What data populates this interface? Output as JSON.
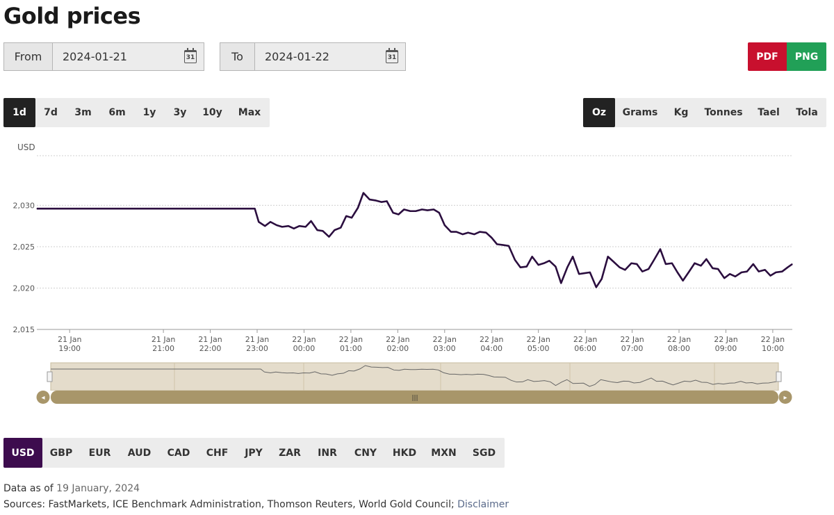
{
  "page": {
    "title": "Gold prices"
  },
  "date_range": {
    "from_label": "From",
    "from_value": "2024-01-21",
    "to_label": "To",
    "to_value": "2024-01-22",
    "calendar_day": "31"
  },
  "export": {
    "pdf": "PDF",
    "png": "PNG"
  },
  "periods": {
    "items": [
      "1d",
      "7d",
      "3m",
      "6m",
      "1y",
      "3y",
      "10y",
      "Max"
    ],
    "selected": "1d"
  },
  "units": {
    "items": [
      "Oz",
      "Grams",
      "Kg",
      "Tonnes",
      "Tael",
      "Tola"
    ],
    "selected": "Oz"
  },
  "currencies": {
    "items": [
      "USD",
      "GBP",
      "EUR",
      "AUD",
      "CAD",
      "CHF",
      "JPY",
      "ZAR",
      "INR",
      "CNY",
      "HKD",
      "MXN",
      "SGD"
    ],
    "selected": "USD"
  },
  "footer": {
    "asof_prefix": "Data as of",
    "asof_date": "19 January, 2024",
    "sources_text": "Sources: FastMarkets, ICE Benchmark Administration, Thomson Reuters, World Gold Council;",
    "disclaimer": "Disclaimer"
  },
  "navigator": {
    "handle_glyph": "|||",
    "left_arrow": "◂",
    "right_arrow": "▸"
  },
  "colors": {
    "line": "#2b0e3f",
    "period_active": "#222222",
    "currency_active": "#3d0c4e",
    "pdf": "#c8102e",
    "png": "#21a057",
    "navigator": "#a8966a"
  },
  "chart_data": {
    "type": "line",
    "ylabel": "USD",
    "ylim": [
      2015,
      2036
    ],
    "yticks": [
      2015,
      2020,
      2025,
      2030
    ],
    "ytick_labels": [
      "2,015",
      "2,020",
      "2,025",
      "2,030"
    ],
    "grid": true,
    "xlim": [
      "2024-01-21T18:18",
      "2024-01-22T10:25"
    ],
    "xticks": [
      {
        "t": "2024-01-21T19:00",
        "l1": "21 Jan",
        "l2": "19:00"
      },
      {
        "t": "2024-01-21T21:00",
        "l1": "21 Jan",
        "l2": "21:00"
      },
      {
        "t": "2024-01-21T22:00",
        "l1": "21 Jan",
        "l2": "22:00"
      },
      {
        "t": "2024-01-21T23:00",
        "l1": "21 Jan",
        "l2": "23:00"
      },
      {
        "t": "2024-01-22T00:00",
        "l1": "22 Jan",
        "l2": "00:00"
      },
      {
        "t": "2024-01-22T01:00",
        "l1": "22 Jan",
        "l2": "01:00"
      },
      {
        "t": "2024-01-22T02:00",
        "l1": "22 Jan",
        "l2": "02:00"
      },
      {
        "t": "2024-01-22T03:00",
        "l1": "22 Jan",
        "l2": "03:00"
      },
      {
        "t": "2024-01-22T04:00",
        "l1": "22 Jan",
        "l2": "04:00"
      },
      {
        "t": "2024-01-22T05:00",
        "l1": "22 Jan",
        "l2": "05:00"
      },
      {
        "t": "2024-01-22T06:00",
        "l1": "22 Jan",
        "l2": "06:00"
      },
      {
        "t": "2024-01-22T07:00",
        "l1": "22 Jan",
        "l2": "07:00"
      },
      {
        "t": "2024-01-22T08:00",
        "l1": "22 Jan",
        "l2": "08:00"
      },
      {
        "t": "2024-01-22T09:00",
        "l1": "22 Jan",
        "l2": "09:00"
      },
      {
        "t": "2024-01-22T10:00",
        "l1": "22 Jan",
        "l2": "10:00"
      }
    ],
    "series": [
      {
        "x": [
          "2024-01-21T18:18",
          "2024-01-21T22:57",
          "2024-01-21T23:02",
          "2024-01-21T23:10",
          "2024-01-21T23:17",
          "2024-01-21T23:25",
          "2024-01-21T23:32",
          "2024-01-21T23:40",
          "2024-01-21T23:47",
          "2024-01-21T23:54",
          "2024-01-22T00:02",
          "2024-01-22T00:09",
          "2024-01-22T00:17",
          "2024-01-22T00:24",
          "2024-01-22T00:32",
          "2024-01-22T00:39",
          "2024-01-22T00:47",
          "2024-01-22T00:54",
          "2024-01-22T01:01",
          "2024-01-22T01:09",
          "2024-01-22T01:16",
          "2024-01-22T01:24",
          "2024-01-22T01:31",
          "2024-01-22T01:39",
          "2024-01-22T01:46",
          "2024-01-22T01:54",
          "2024-01-22T02:01",
          "2024-01-22T02:08",
          "2024-01-22T02:16",
          "2024-01-22T02:23",
          "2024-01-22T02:31",
          "2024-01-22T02:38",
          "2024-01-22T02:46",
          "2024-01-22T02:53",
          "2024-01-22T03:00",
          "2024-01-22T03:08",
          "2024-01-22T03:15",
          "2024-01-22T03:23",
          "2024-01-22T03:30",
          "2024-01-22T03:38",
          "2024-01-22T03:45",
          "2024-01-22T03:53",
          "2024-01-22T04:00",
          "2024-01-22T04:07",
          "2024-01-22T04:15",
          "2024-01-22T04:22",
          "2024-01-22T04:30",
          "2024-01-22T04:37",
          "2024-01-22T04:45",
          "2024-01-22T04:52",
          "2024-01-22T05:00",
          "2024-01-22T05:07",
          "2024-01-22T05:14",
          "2024-01-22T05:22",
          "2024-01-22T05:29",
          "2024-01-22T05:37",
          "2024-01-22T05:44",
          "2024-01-22T05:52",
          "2024-01-22T05:59",
          "2024-01-22T06:06",
          "2024-01-22T06:14",
          "2024-01-22T06:21",
          "2024-01-22T06:29",
          "2024-01-22T06:36",
          "2024-01-22T06:44",
          "2024-01-22T06:51",
          "2024-01-22T06:59",
          "2024-01-22T07:06",
          "2024-01-22T07:13",
          "2024-01-22T07:21",
          "2024-01-22T07:28",
          "2024-01-22T07:36",
          "2024-01-22T07:43",
          "2024-01-22T07:51",
          "2024-01-22T07:58",
          "2024-01-22T08:05",
          "2024-01-22T08:13",
          "2024-01-22T08:20",
          "2024-01-22T08:28",
          "2024-01-22T08:35",
          "2024-01-22T08:43",
          "2024-01-22T08:50",
          "2024-01-22T08:58",
          "2024-01-22T09:05",
          "2024-01-22T09:12",
          "2024-01-22T09:20",
          "2024-01-22T09:27",
          "2024-01-22T09:35",
          "2024-01-22T09:42",
          "2024-01-22T09:50",
          "2024-01-22T09:57",
          "2024-01-22T10:04",
          "2024-01-22T10:12",
          "2024-01-22T10:19",
          "2024-01-22T10:25"
        ],
        "y": [
          2029.6,
          2029.6,
          2028.0,
          2027.5,
          2028.0,
          2027.6,
          2027.4,
          2027.5,
          2027.2,
          2027.5,
          2027.4,
          2028.1,
          2027.0,
          2026.9,
          2026.2,
          2027.0,
          2027.3,
          2028.7,
          2028.5,
          2029.7,
          2031.5,
          2030.7,
          2030.6,
          2030.4,
          2030.5,
          2029.1,
          2028.9,
          2029.5,
          2029.3,
          2029.3,
          2029.5,
          2029.4,
          2029.5,
          2029.1,
          2027.6,
          2026.8,
          2026.8,
          2026.5,
          2026.7,
          2026.5,
          2026.8,
          2026.7,
          2026.1,
          2025.3,
          2025.2,
          2025.1,
          2023.4,
          2022.5,
          2022.6,
          2023.8,
          2022.8,
          2023.0,
          2023.3,
          2022.6,
          2020.6,
          2022.5,
          2023.8,
          2021.7,
          2021.8,
          2021.9,
          2020.1,
          2021.1,
          2023.8,
          2023.2,
          2022.5,
          2022.2,
          2023.0,
          2022.9,
          2022.0,
          2022.3,
          2023.4,
          2024.7,
          2022.9,
          2023.0,
          2021.9,
          2020.9,
          2022.0,
          2023.0,
          2022.7,
          2023.5,
          2022.4,
          2022.3,
          2021.2,
          2021.7,
          2021.4,
          2021.9,
          2022.0,
          2022.9,
          2022.0,
          2022.2,
          2021.5,
          2021.9,
          2022.0,
          2022.5,
          2022.9
        ]
      }
    ]
  }
}
